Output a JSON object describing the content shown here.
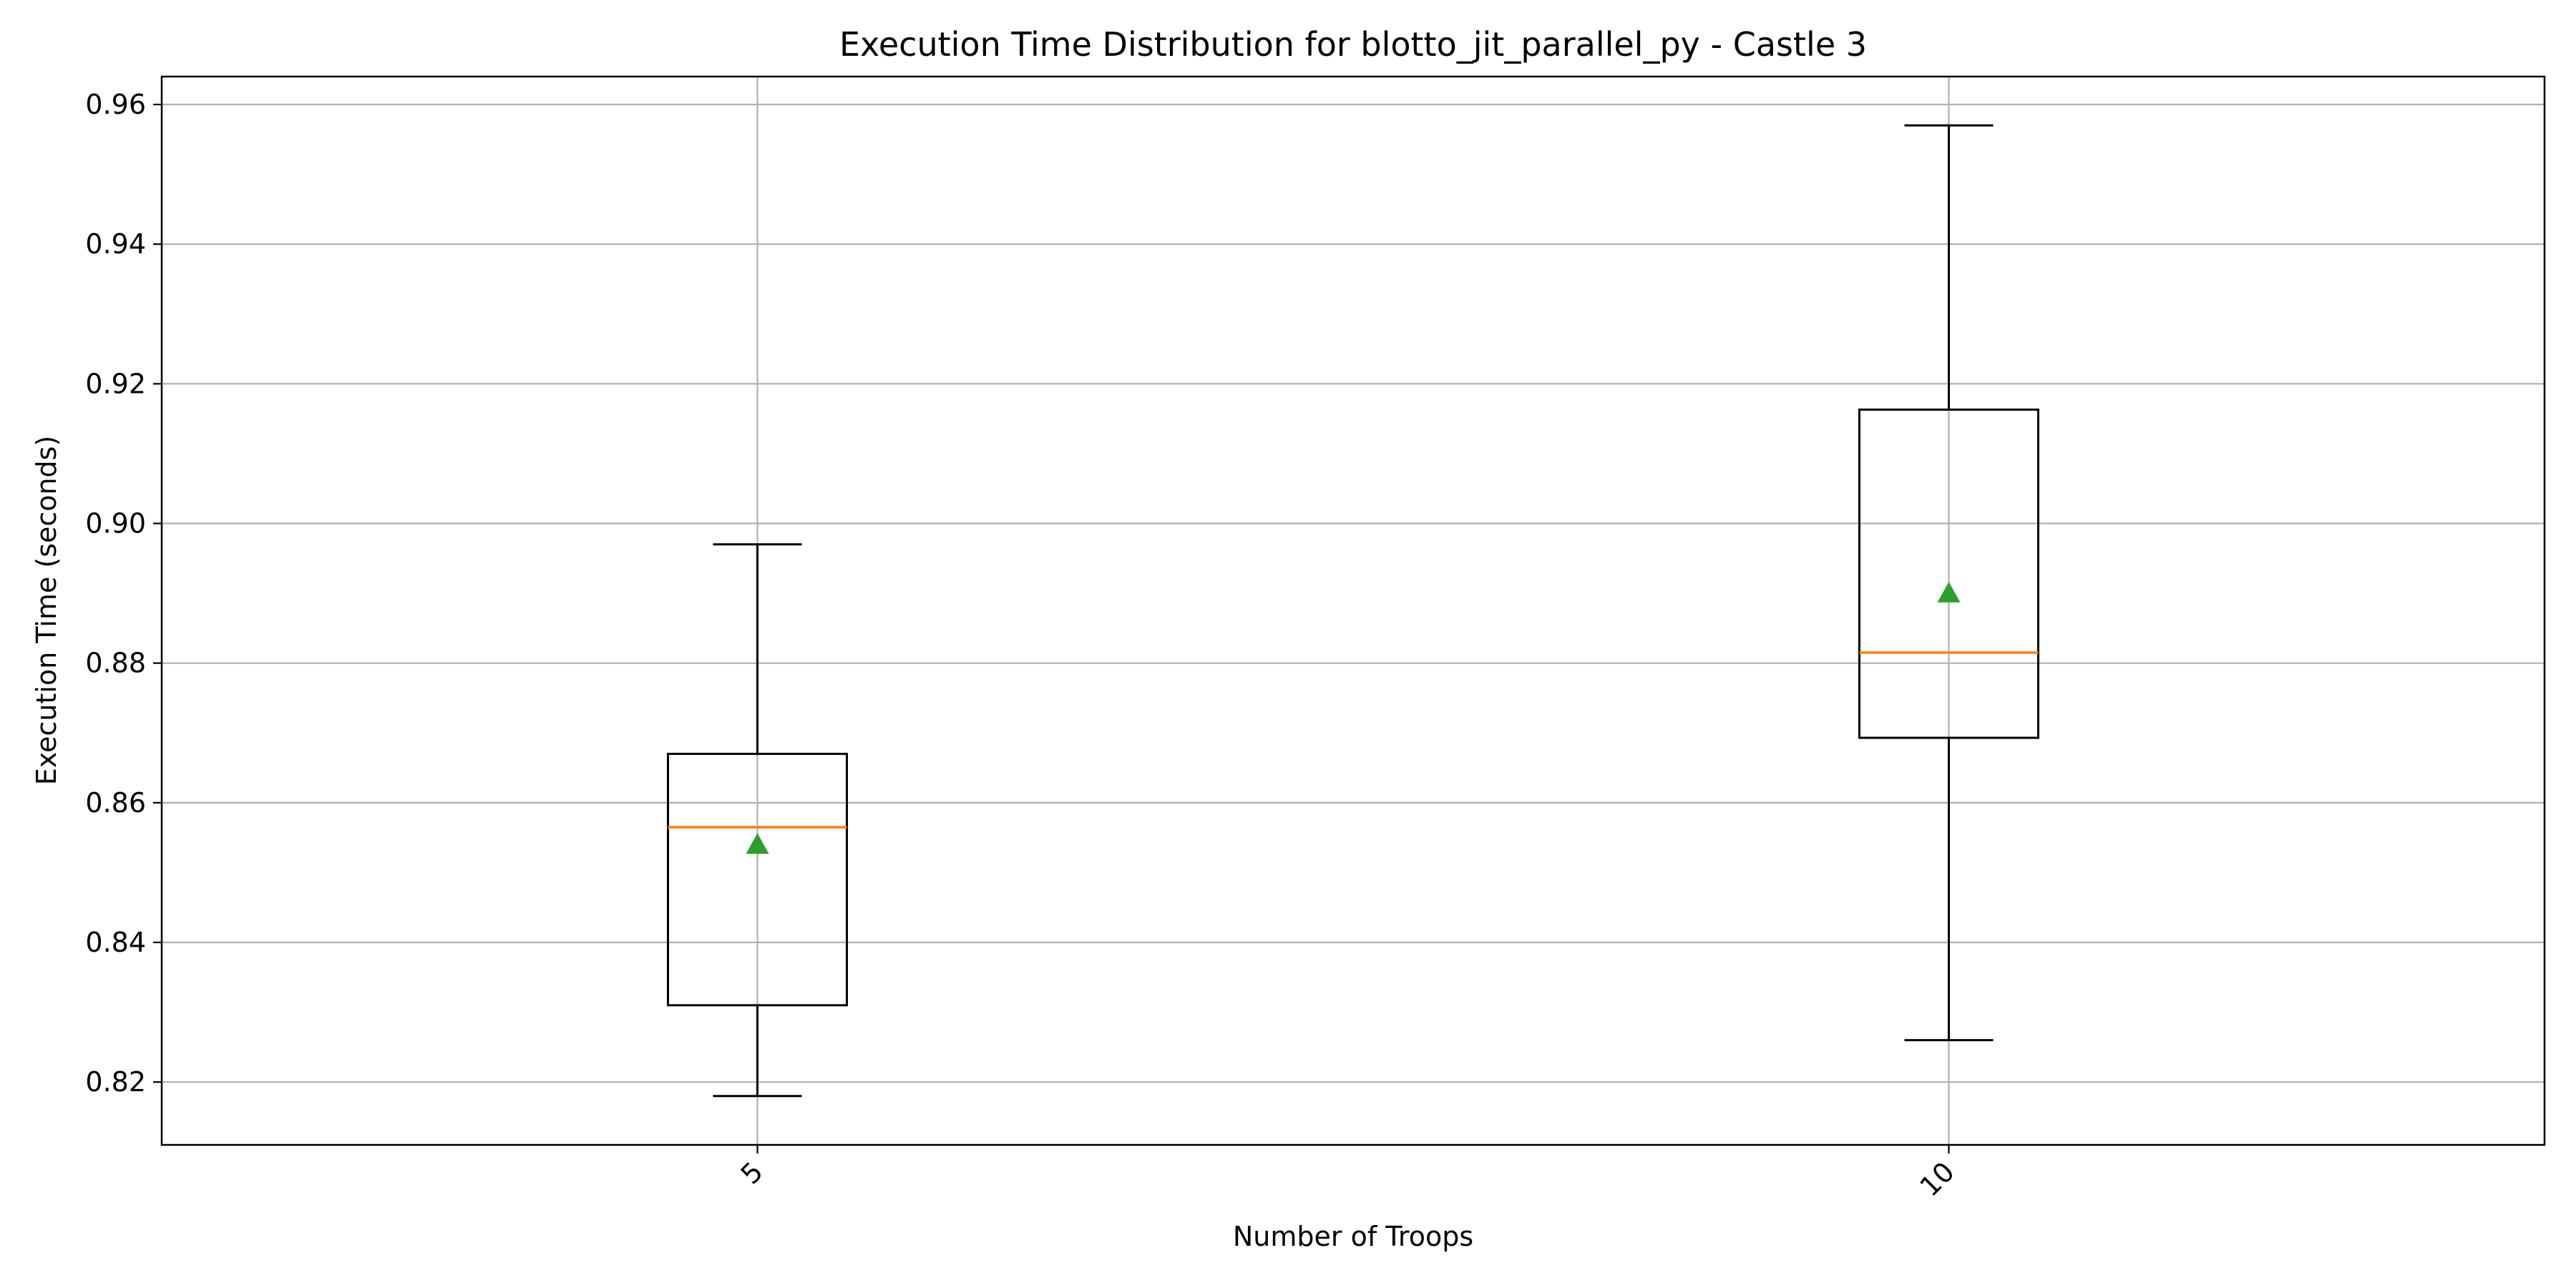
{
  "chart_data": {
    "type": "box",
    "title": "Execution Time Distribution for blotto_jit_parallel_py - Castle 3",
    "xlabel": "Number of Troops",
    "ylabel": "Execution Time (seconds)",
    "categories": [
      "5",
      "10"
    ],
    "ylim": [
      0.811,
      0.964
    ],
    "yticks": [
      0.82,
      0.84,
      0.86,
      0.88,
      0.9,
      0.92,
      0.94,
      0.96
    ],
    "ytick_labels": [
      "0.82",
      "0.84",
      "0.86",
      "0.88",
      "0.90",
      "0.92",
      "0.94",
      "0.96"
    ],
    "grid": true,
    "xtick_rotation_deg": 45,
    "boxes": [
      {
        "category": "5",
        "whisker_low": 0.818,
        "q1": 0.831,
        "median": 0.8565,
        "q3": 0.867,
        "whisker_high": 0.897,
        "mean": 0.854
      },
      {
        "category": "10",
        "whisker_low": 0.826,
        "q1": 0.8693,
        "median": 0.8815,
        "q3": 0.9163,
        "whisker_high": 0.957,
        "mean": 0.89
      }
    ],
    "colors": {
      "box": "#000000",
      "median": "#ff7f0e",
      "mean_marker": "#2ca02c",
      "grid": "#b0b0b0"
    }
  }
}
